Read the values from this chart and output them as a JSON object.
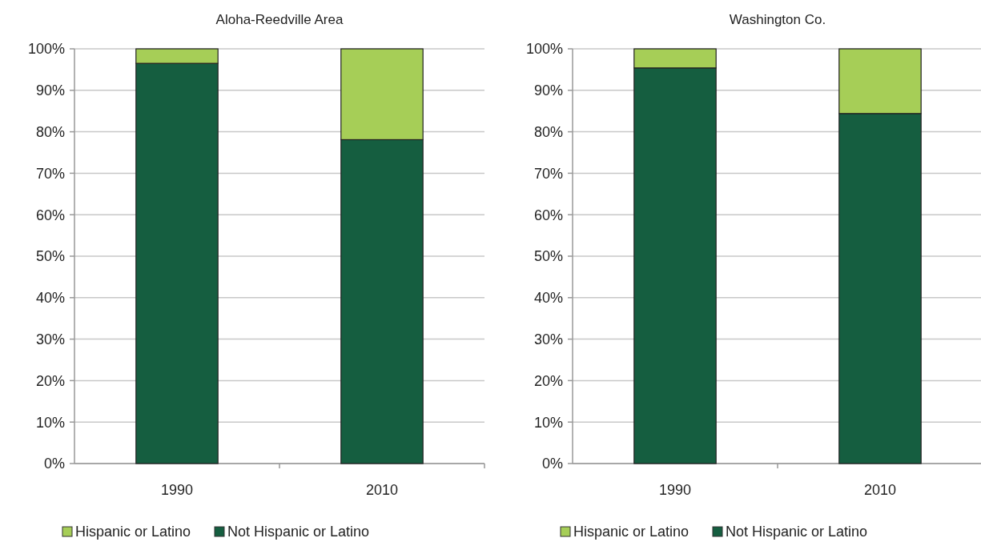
{
  "chart_data": [
    {
      "type": "bar",
      "title": "Aloha-Reedville Area",
      "categories": [
        "1990",
        "2010"
      ],
      "stacked": true,
      "ylim": [
        0,
        100
      ],
      "yticks": [
        {
          "value": 0,
          "label": "0%"
        },
        {
          "value": 10,
          "label": "10%"
        },
        {
          "value": 20,
          "label": "20%"
        },
        {
          "value": 30,
          "label": "30%"
        },
        {
          "value": 40,
          "label": "40%"
        },
        {
          "value": 50,
          "label": "50%"
        },
        {
          "value": 60,
          "label": "60%"
        },
        {
          "value": 70,
          "label": "70%"
        },
        {
          "value": 80,
          "label": "80%"
        },
        {
          "value": 90,
          "label": "90%"
        },
        {
          "value": 100,
          "label": "100%"
        }
      ],
      "grid": "y",
      "legend": "bottom",
      "series": [
        {
          "name": "Not Hispanic or Latino",
          "color": "#155e40",
          "values": [
            96.5,
            78.1
          ]
        },
        {
          "name": "Hispanic or Latino",
          "color": "#a6ce57",
          "values": [
            3.5,
            21.9
          ]
        }
      ]
    },
    {
      "type": "bar",
      "title": "Washington Co.",
      "categories": [
        "1990",
        "2010"
      ],
      "stacked": true,
      "ylim": [
        0,
        100
      ],
      "yticks": [
        {
          "value": 0,
          "label": "0%"
        },
        {
          "value": 10,
          "label": "10%"
        },
        {
          "value": 20,
          "label": "20%"
        },
        {
          "value": 30,
          "label": "30%"
        },
        {
          "value": 40,
          "label": "40%"
        },
        {
          "value": 50,
          "label": "50%"
        },
        {
          "value": 60,
          "label": "60%"
        },
        {
          "value": 70,
          "label": "70%"
        },
        {
          "value": 80,
          "label": "80%"
        },
        {
          "value": 90,
          "label": "90%"
        },
        {
          "value": 100,
          "label": "100%"
        }
      ],
      "grid": "y",
      "legend": "bottom",
      "series": [
        {
          "name": "Not Hispanic or Latino",
          "color": "#155e40",
          "values": [
            95.4,
            84.4
          ]
        },
        {
          "name": "Hispanic or Latino",
          "color": "#a6ce57",
          "values": [
            4.6,
            15.6
          ]
        }
      ]
    }
  ]
}
